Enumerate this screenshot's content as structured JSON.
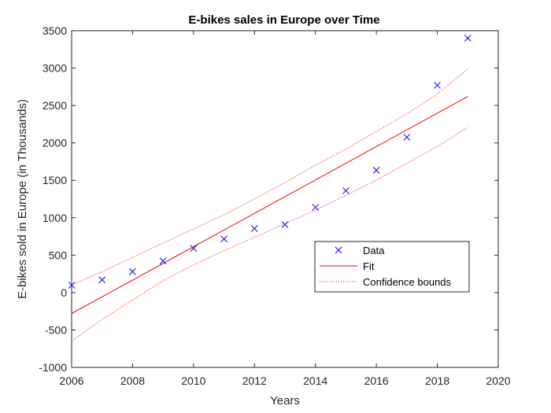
{
  "chart_data": {
    "type": "scatter",
    "title": "E-bikes sales in Europe over Time",
    "xlabel": "Years",
    "ylabel": "E-bikes sold in Europe (in Thousands)",
    "xlim": [
      2006,
      2020
    ],
    "ylim": [
      -1000,
      3500
    ],
    "xticks": [
      2006,
      2008,
      2010,
      2012,
      2014,
      2016,
      2018,
      2020
    ],
    "yticks": [
      -1000,
      -500,
      0,
      500,
      1000,
      1500,
      2000,
      2500,
      3000,
      3500
    ],
    "grid": false,
    "legend_position": "center-right",
    "data": {
      "name": "Data",
      "color": "#0000ff",
      "marker": "x",
      "x": [
        2006,
        2007,
        2008,
        2009,
        2010,
        2011,
        2012,
        2013,
        2014,
        2015,
        2016,
        2017,
        2018,
        2019
      ],
      "y": [
        98,
        170,
        280,
        422,
        590,
        716,
        856,
        908,
        1139,
        1361,
        1635,
        2076,
        2770,
        3400
      ]
    },
    "fit": {
      "name": "Fit",
      "color": "#ff0000",
      "x": [
        2006,
        2019
      ],
      "y": [
        -280,
        2620
      ]
    },
    "confidence_bounds": {
      "name": "Confidence bounds",
      "color": "#ff0000",
      "x": [
        2006,
        2007,
        2008,
        2009,
        2010,
        2011,
        2012,
        2013,
        2014,
        2015,
        2016,
        2017,
        2018,
        2019
      ],
      "upper": [
        100,
        278,
        470,
        660,
        850,
        1040,
        1250,
        1470,
        1700,
        1920,
        2150,
        2390,
        2650,
        2990
      ],
      "lower": [
        -650,
        -360,
        -100,
        160,
        370,
        560,
        740,
        920,
        1100,
        1300,
        1500,
        1730,
        1950,
        2210
      ]
    }
  }
}
